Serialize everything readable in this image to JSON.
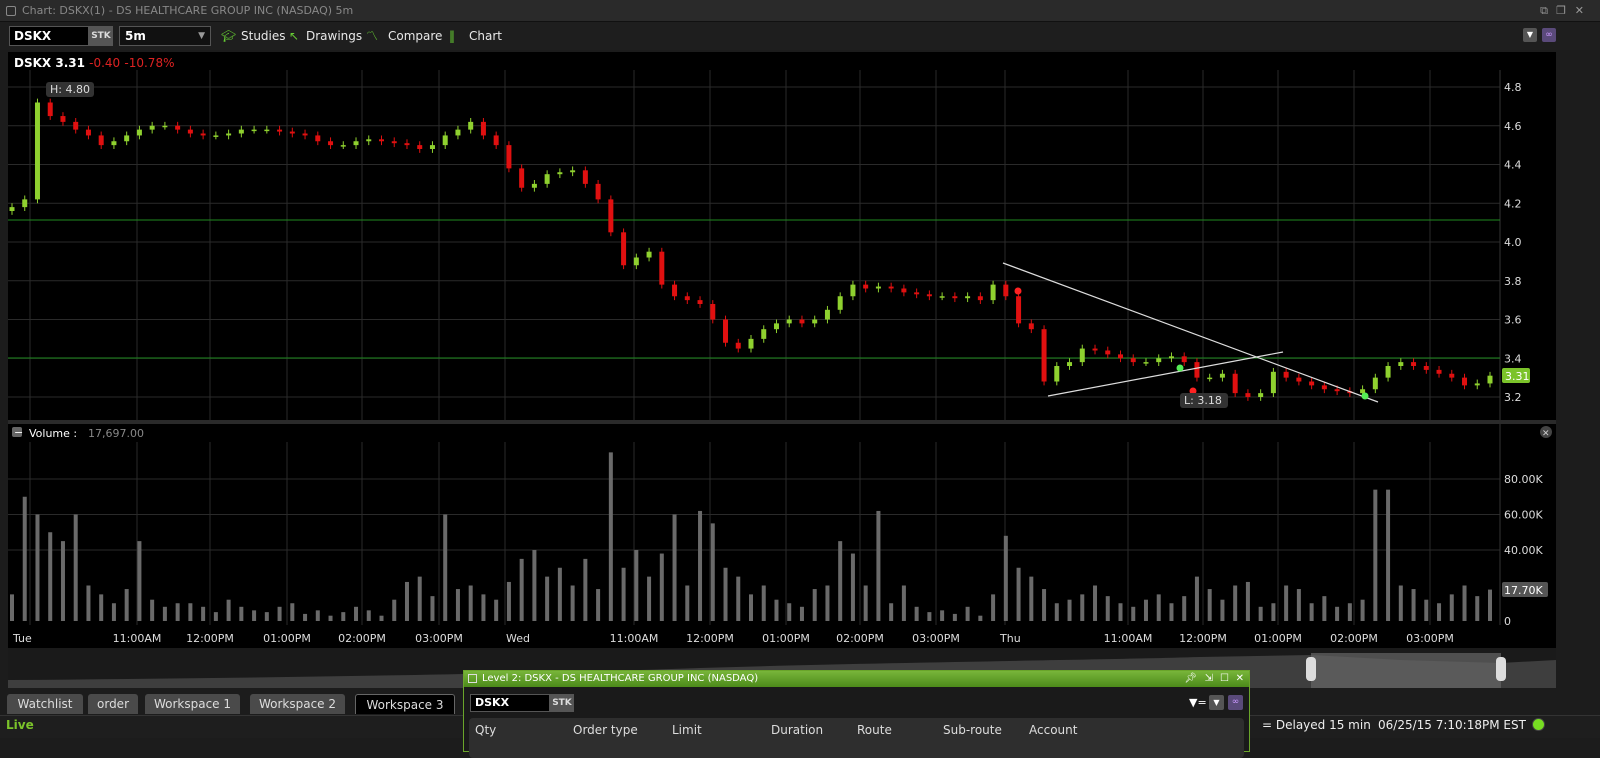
{
  "window": {
    "title": "Chart: DSKX(1) - DS HEALTHCARE GROUP INC (NASDAQ) 5m"
  },
  "toolbar": {
    "symbol": "DSKX",
    "sec_type": "STK",
    "interval": "5m",
    "studies": "Studies",
    "drawings": "Drawings",
    "compare": "Compare",
    "chart": "Chart"
  },
  "quote": {
    "symbol": "DSKX",
    "last": "3.31",
    "change": "-0.40",
    "change_pct": "-10.78%"
  },
  "annotations": {
    "high": "H: 4.80",
    "low": "L: 3.18",
    "last_tag": "3.31",
    "volume_tag": "17.70K"
  },
  "volume": {
    "label": "Volume :",
    "value": "17,697.00"
  },
  "colors": {
    "up": "#8fd12f",
    "down": "#e01010",
    "accent": "#6aa52a",
    "level_line": "#1f8a1f"
  },
  "price_axis": [
    "4.8",
    "4.6",
    "4.4",
    "4.2",
    "4.0",
    "3.8",
    "3.6",
    "3.4",
    "3.2"
  ],
  "volume_axis": [
    "80.00K",
    "60.00K",
    "40.00K",
    "0"
  ],
  "time_axis": [
    "Tue",
    "11:00AM",
    "12:00PM",
    "01:00PM",
    "02:00PM",
    "03:00PM",
    "Wed",
    "11:00AM",
    "12:00PM",
    "01:00PM",
    "02:00PM",
    "03:00PM",
    "Thu",
    "11:00AM",
    "12:00PM",
    "01:00PM",
    "02:00PM",
    "03:00PM"
  ],
  "chart_data": {
    "type": "candlestick",
    "interval": "5m",
    "ylim": [
      3.1,
      4.9
    ],
    "volume_ylim": [
      0,
      90000
    ],
    "horizontal_levels": [
      4.12,
      3.4
    ],
    "close": [
      4.18,
      4.22,
      4.72,
      4.65,
      4.62,
      4.58,
      4.55,
      4.5,
      4.52,
      4.55,
      4.58,
      4.6,
      4.6,
      4.58,
      4.56,
      4.55,
      4.55,
      4.56,
      4.58,
      4.58,
      4.58,
      4.57,
      4.56,
      4.55,
      4.52,
      4.5,
      4.5,
      4.52,
      4.53,
      4.52,
      4.51,
      4.5,
      4.48,
      4.5,
      4.55,
      4.58,
      4.62,
      4.55,
      4.5,
      4.38,
      4.28,
      4.3,
      4.35,
      4.36,
      4.37,
      4.3,
      4.22,
      4.05,
      3.88,
      3.92,
      3.95,
      3.78,
      3.72,
      3.7,
      3.68,
      3.6,
      3.48,
      3.45,
      3.5,
      3.55,
      3.58,
      3.6,
      3.58,
      3.6,
      3.65,
      3.72,
      3.78,
      3.76,
      3.77,
      3.76,
      3.74,
      3.73,
      3.72,
      3.72,
      3.71,
      3.72,
      3.7,
      3.78,
      3.72,
      3.58,
      3.55,
      3.28,
      3.36,
      3.38,
      3.45,
      3.44,
      3.42,
      3.4,
      3.38,
      3.38,
      3.4,
      3.41,
      3.38,
      3.3,
      3.3,
      3.32,
      3.22,
      3.2,
      3.22,
      3.33,
      3.3,
      3.28,
      3.26,
      3.24,
      3.23,
      3.22,
      3.24,
      3.3,
      3.36,
      3.38,
      3.36,
      3.34,
      3.32,
      3.3,
      3.26,
      3.27,
      3.31
    ],
    "volume_k": [
      15,
      70,
      60,
      50,
      45,
      60,
      20,
      15,
      10,
      18,
      45,
      12,
      8,
      10,
      10,
      8,
      5,
      12,
      8,
      6,
      5,
      8,
      10,
      4,
      6,
      3,
      5,
      8,
      6,
      3,
      12,
      22,
      25,
      14,
      60,
      18,
      20,
      15,
      12,
      22,
      35,
      40,
      25,
      30,
      20,
      35,
      18,
      95,
      30,
      40,
      25,
      38,
      60,
      20,
      62,
      55,
      30,
      25,
      15,
      20,
      12,
      10,
      8,
      18,
      20,
      45,
      38,
      20,
      62,
      10,
      20,
      8,
      5,
      6,
      4,
      8,
      3,
      15,
      48,
      30,
      25,
      18,
      10,
      12,
      15,
      20,
      14,
      10,
      8,
      12,
      15,
      10,
      14,
      25,
      18,
      12,
      20,
      22,
      8,
      10,
      20,
      18,
      10,
      14,
      8,
      10,
      12,
      74,
      74,
      20,
      18,
      12,
      10,
      15,
      20,
      14,
      17.7
    ]
  },
  "tabs": [
    {
      "label": "Watchlist"
    },
    {
      "label": "order"
    },
    {
      "label": "Workspace 1"
    },
    {
      "label": "Workspace 2"
    },
    {
      "label": "Workspace 3",
      "active": true
    }
  ],
  "status": {
    "mode": "Live",
    "delay": "= Delayed 15 min",
    "timestamp": "06/25/15 7:10:18PM EST"
  },
  "level2": {
    "title": "Level 2: DSKX - DS HEALTHCARE GROUP INC (NASDAQ)",
    "symbol": "DSKX",
    "sec_type": "STK",
    "columns": [
      "Qty",
      "Order type",
      "Limit",
      "Duration",
      "Route",
      "Sub-route",
      "Account"
    ]
  }
}
